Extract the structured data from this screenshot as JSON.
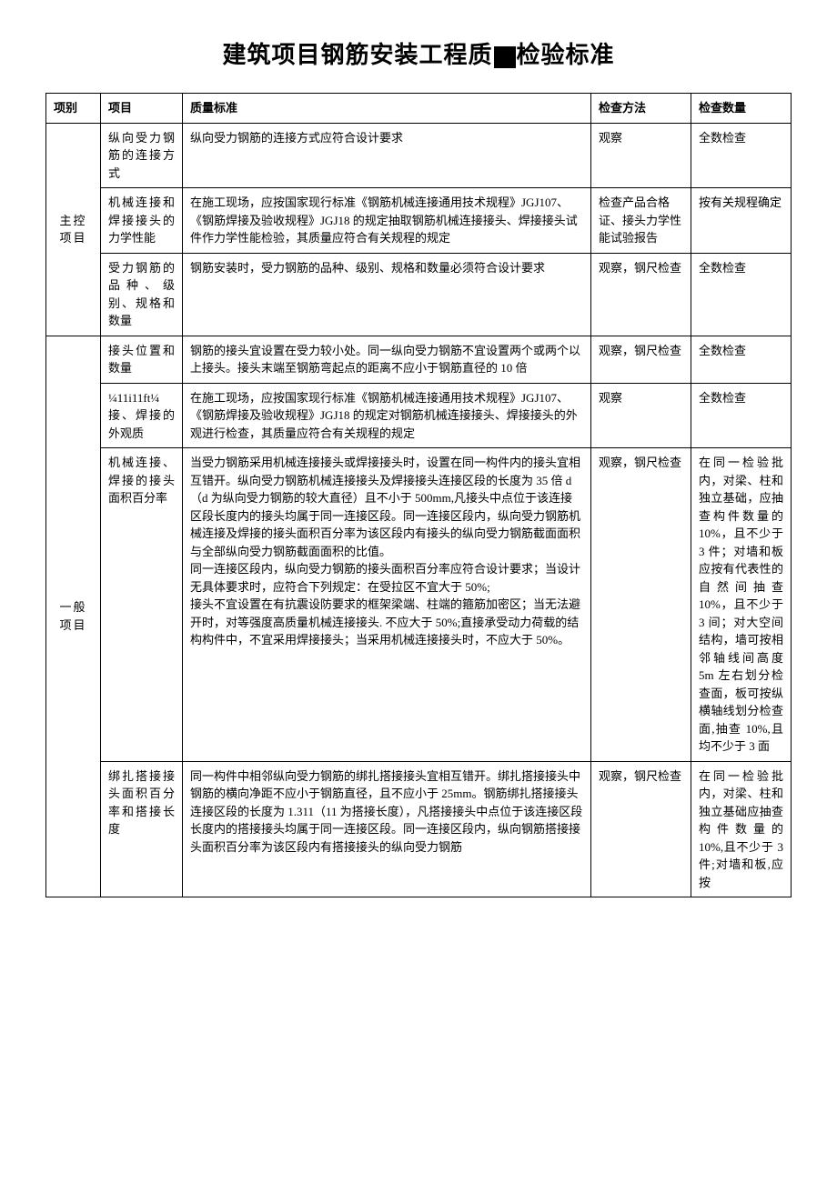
{
  "title_prefix": "建筑项目钢筋安装工程质",
  "title_suffix": "检验标准",
  "headers": {
    "category": "项别",
    "item": "项目",
    "standard": "质量标准",
    "method": "检查方法",
    "qty": "检查数量"
  },
  "categories": {
    "main": "主控项目",
    "general": "一般项目"
  },
  "rows": [
    {
      "item": "纵向受力钢筋的连接方式",
      "standard": "纵向受力钢筋的连接方式应符合设计要求",
      "method": "观察",
      "qty": "全数检查"
    },
    {
      "item": "机械连接和焊接接头的力学性能",
      "standard": "在施工现场，应按国家现行标准《钢筋机械连接通用技术规程》JGJ107、《钢筋焊接及验收规程》JGJ18 的规定抽取钢筋机械连接接头、焊接接头试件作力学性能检验，其质量应符合有关规程的规定",
      "method": "检查产品合格证、接头力学性能试验报告",
      "qty": "按有关规程确定"
    },
    {
      "item": "受力钢筋的品种、级别、规格和数量",
      "standard": "钢筋安装时，受力钢筋的品种、级别、规格和数量必须符合设计要求",
      "method": "观察，钢尺检查",
      "qty": "全数检查"
    },
    {
      "item": "接头位置和数量",
      "standard": "钢筋的接头宜设置在受力较小处。同一纵向受力钢筋不宜设置两个或两个以上接头。接头末端至钢筋弯起点的距离不应小于钢筋直径的 10 倍",
      "method": "观察，钢尺检查",
      "qty": "全数检查"
    },
    {
      "item": "¼11i11ft¼ 接、焊接的外观质",
      "standard": "在施工现场，应按国家现行标准《钢筋机械连接通用技术规程》JGJ107、《钢筋焊接及验收规程》JGJ18 的规定对钢筋机械连接接头、焊接接头的外观进行检查，其质量应符合有关规程的规定",
      "method": "观察",
      "qty": "全数检查"
    },
    {
      "item": "机械连接、焊接的接头面积百分率",
      "standard": "当受力钢筋采用机械连接接头或焊接接头时，设置在同一构件内的接头宜相互错开。纵向受力钢筋机械连接接头及焊接接头连接区段的长度为 35 倍 d（d 为纵向受力钢筋的较大直径）且不小于 500mm,凡接头中点位于该连接区段长度内的接头均属于同一连接区段。同一连接区段内，纵向受力钢筋机械连接及焊接的接头面积百分率为该区段内有接头的纵向受力钢筋截面面积与全部纵向受力钢筋截面面积的比值。\n同一连接区段内，纵向受力钢筋的接头面积百分率应符合设计要求；当设计无具体要求时，应符合下列规定：在受拉区不宜大于 50%;\n接头不宜设置在有抗震设防要求的框架梁端、柱端的箍筋加密区；当无法避开时，对等强度高质量机械连接接头. 不应大于 50%;直接承受动力荷载的结构构件中，不宜采用焊接接头；当采用机械连接接头时，不应大于 50%。",
      "method": "观察，钢尺检查",
      "qty": "在同一检验批内，对梁、柱和独立基础，应抽查构件数量的 10%，且不少于 3 件；对墙和板应按有代表性的自然间抽查 10%，且不少于 3 间；对大空间结构，墙可按相邻轴线间高度 5m 左右划分检查面，板可按纵横轴线划分检查面,抽查 10%,且均不少于 3 面"
    },
    {
      "item": "绑扎搭接接头面积百分率和搭接长度",
      "standard": "同一构件中相邻纵向受力钢筋的绑扎搭接接头宜相互错开。绑扎搭接接头中钢筋的横向净距不应小于钢筋直径，且不应小于 25mm。钢筋绑扎搭接接头连接区段的长度为 1.311（11 为搭接长度），凡搭接接头中点位于该连接区段长度内的搭接接头均属于同一连接区段。同一连接区段内，纵向钢筋搭接接头面积百分率为该区段内有搭接接头的纵向受力钢筋",
      "method": "观察，钢尺检查",
      "qty": "在同一检验批内，对梁、柱和独立基础应抽查构件数量的 10%,且不少于 3 件;对墙和板,应按"
    }
  ]
}
